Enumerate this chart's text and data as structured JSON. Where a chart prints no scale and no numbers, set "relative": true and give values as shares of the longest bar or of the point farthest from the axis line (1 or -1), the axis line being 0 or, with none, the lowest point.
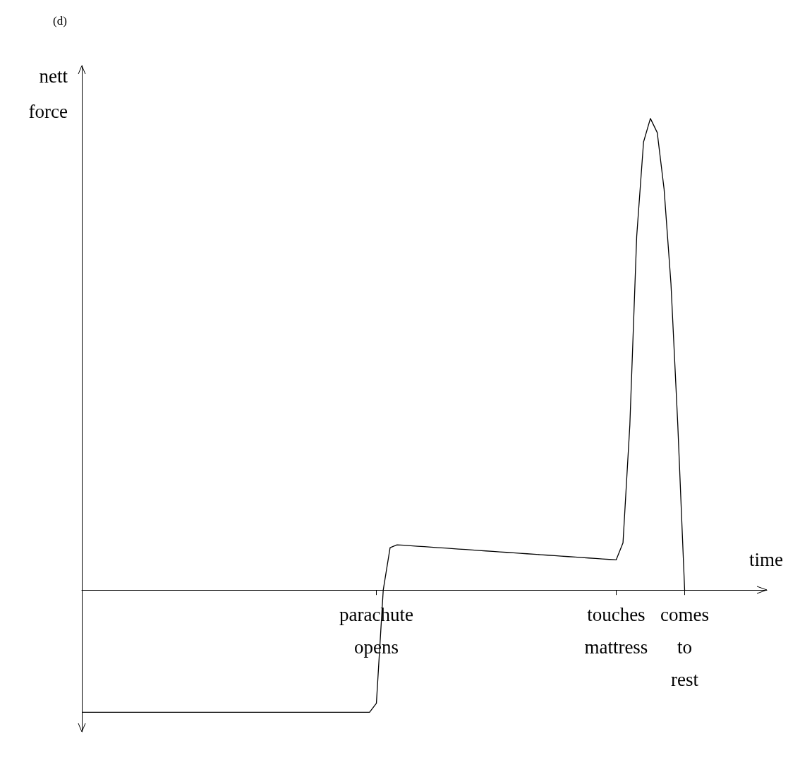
{
  "chart_data": {
    "type": "line",
    "title": "(d)",
    "xlabel": "time",
    "ylabel": "nett force",
    "relative": true,
    "color": "#000000",
    "marker": "none",
    "line_style": "solid",
    "grid": false,
    "tick_labels": "x",
    "categories": [
      null,
      null,
      null,
      null,
      null,
      null,
      null,
      null,
      null,
      null,
      null,
      null,
      null,
      null,
      null,
      null,
      null,
      null,
      null,
      null,
      null,
      null,
      null,
      null,
      null,
      null,
      null,
      null,
      null,
      null,
      null,
      null,
      null,
      null,
      null,
      null,
      null,
      null,
      null,
      null,
      null,
      null,
      null,
      "parachute opens",
      null,
      null,
      null,
      null,
      null,
      null,
      null,
      null,
      null,
      null,
      null,
      null,
      null,
      null,
      null,
      null,
      null,
      null,
      null,
      null,
      null,
      null,
      null,
      null,
      null,
      null,
      null,
      null,
      null,
      null,
      null,
      null,
      null,
      null,
      "touches mattress",
      null,
      null,
      null,
      null,
      null,
      null,
      null,
      null,
      null,
      "comes to rest",
      null,
      null,
      null,
      null,
      null,
      null,
      null,
      null,
      null,
      null,
      null,
      null
    ],
    "values": [
      -0.259,
      -0.259,
      -0.259,
      -0.259,
      -0.259,
      -0.259,
      -0.259,
      -0.259,
      -0.259,
      -0.259,
      -0.259,
      -0.259,
      -0.259,
      -0.259,
      -0.259,
      -0.259,
      -0.259,
      -0.259,
      -0.259,
      -0.259,
      -0.259,
      -0.259,
      -0.259,
      -0.259,
      -0.259,
      -0.259,
      -0.259,
      -0.259,
      -0.259,
      -0.259,
      -0.259,
      -0.259,
      -0.259,
      -0.259,
      -0.259,
      -0.259,
      -0.259,
      -0.259,
      -0.259,
      -0.259,
      -0.259,
      -0.259,
      -0.259,
      -0.24,
      0,
      0.09,
      0.096,
      0.095,
      0.094,
      0.093,
      0.092,
      0.091,
      0.09,
      0.089,
      0.088,
      0.087,
      0.086,
      0.085,
      0.084,
      0.083,
      0.082,
      0.081,
      0.08,
      0.079,
      0.078,
      0.077,
      0.076,
      0.075,
      0.074,
      0.073,
      0.072,
      0.071,
      0.07,
      0.069,
      0.068,
      0.067,
      0.066,
      0.065,
      0.064,
      0.1,
      0.35,
      0.75,
      0.95,
      1,
      0.97,
      0.85,
      0.65,
      0.35,
      0,
      null,
      null,
      null,
      null,
      null,
      null,
      null,
      null,
      null,
      null,
      null,
      null
    ]
  }
}
